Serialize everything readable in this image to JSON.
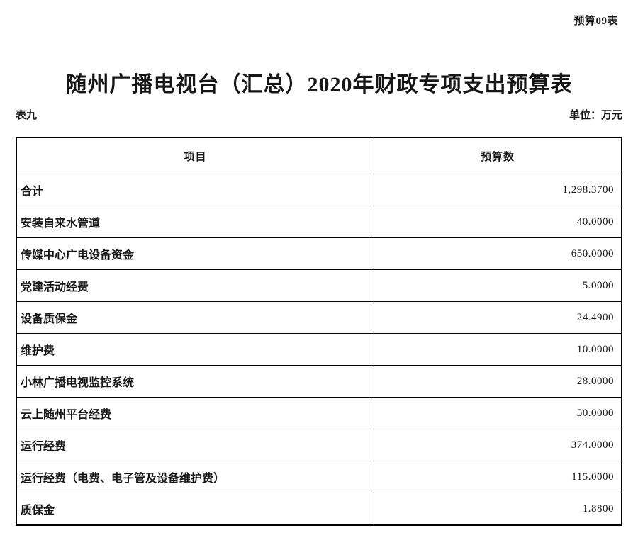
{
  "page": {
    "doc_code": "预算09表",
    "title": "随州广播电视台（汇总）2020年财政专项支出预算表",
    "table_label": "表九",
    "unit_label": "单位：万元"
  },
  "table": {
    "columns": [
      "项目",
      "预算数"
    ],
    "rows": [
      {
        "item": "合计",
        "value": "1,298.3700"
      },
      {
        "item": "安装自来水管道",
        "value": "40.0000"
      },
      {
        "item": "传媒中心广电设备资金",
        "value": "650.0000"
      },
      {
        "item": "党建活动经费",
        "value": "5.0000"
      },
      {
        "item": "设备质保金",
        "value": "24.4900"
      },
      {
        "item": "维护费",
        "value": "10.0000"
      },
      {
        "item": "小林广播电视监控系统",
        "value": "28.0000"
      },
      {
        "item": "云上随州平台经费",
        "value": "50.0000"
      },
      {
        "item": "运行经费",
        "value": "374.0000"
      },
      {
        "item": "运行经费（电费、电子管及设备维护费）",
        "value": "115.0000"
      },
      {
        "item": "质保金",
        "value": "1.8800"
      }
    ]
  }
}
